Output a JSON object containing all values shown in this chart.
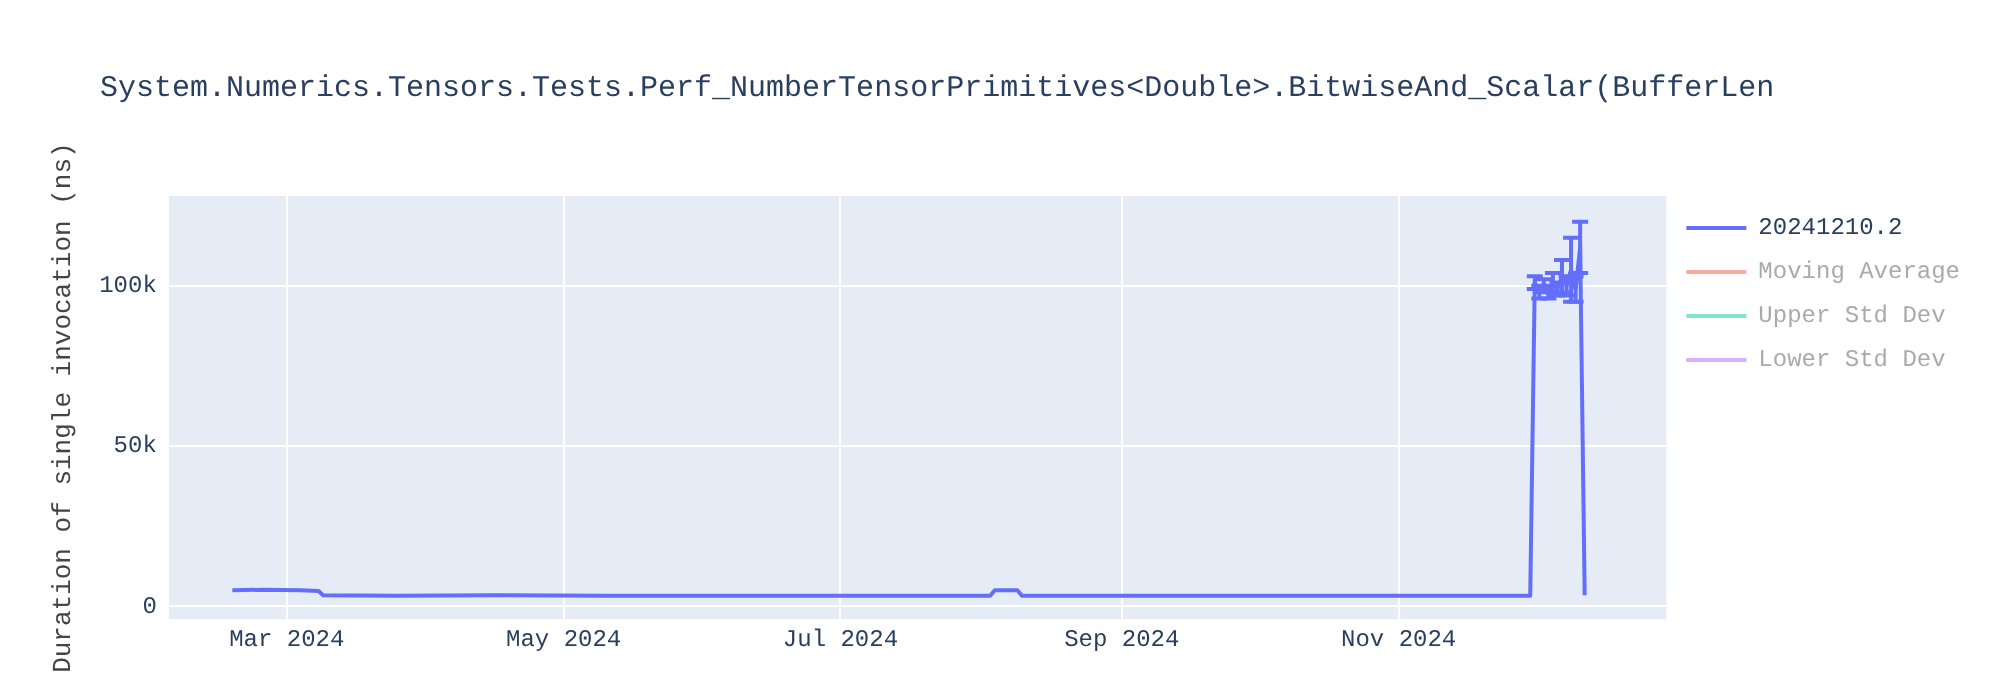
{
  "chart_data": {
    "type": "line",
    "title": "System.Numerics.Tensors.Tests.Perf_NumberTensorPrimitives<Double>.BitwiseAnd_Scalar(BufferLen",
    "ylabel": "Duration of single invocation (ns)",
    "xlim": [
      "2024-02-04",
      "2024-12-30"
    ],
    "xticks": [
      {
        "value": "2024-03-01",
        "label": "Mar 2024"
      },
      {
        "value": "2024-05-01",
        "label": "May 2024"
      },
      {
        "value": "2024-07-01",
        "label": "Jul 2024"
      },
      {
        "value": "2024-09-01",
        "label": "Sep 2024"
      },
      {
        "value": "2024-11-01",
        "label": "Nov 2024"
      }
    ],
    "ylim": [
      -4000,
      128000
    ],
    "yticks": [
      0,
      {
        "value": 50000,
        "label": "50k"
      },
      {
        "value": 100000,
        "label": "100k"
      }
    ],
    "grid": true,
    "legend": "top right",
    "marker": "none",
    "line_style": "solid",
    "series": [
      {
        "name": "20241210.2",
        "color": "#636efa",
        "x": [
          "2024-02-18",
          "2024-02-25",
          "2024-03-04",
          "2024-03-08",
          "2024-03-09",
          "2024-03-25",
          "2024-04-15",
          "2024-05-10",
          "2024-06-15",
          "2024-07-20",
          "2024-08-03",
          "2024-08-04",
          "2024-08-09",
          "2024-08-10",
          "2024-09-20",
          "2024-10-20",
          "2024-11-30",
          "2024-12-01",
          "2024-12-02",
          "2024-12-03",
          "2024-12-04",
          "2024-12-05",
          "2024-12-06",
          "2024-12-07",
          "2024-12-08",
          "2024-12-09",
          "2024-12-10",
          "2024-12-11",
          "2024-12-12"
        ],
        "values": [
          5000,
          5200,
          5000,
          4800,
          3500,
          3300,
          3500,
          3300,
          3300,
          3300,
          3300,
          5000,
          5000,
          3300,
          3300,
          3300,
          3300,
          101000,
          98000,
          100000,
          98000,
          101000,
          99000,
          103000,
          100000,
          105000,
          99000,
          112000,
          3500
        ],
        "errors": [
          null,
          null,
          null,
          null,
          null,
          null,
          null,
          null,
          null,
          null,
          null,
          null,
          null,
          null,
          null,
          null,
          null,
          2000,
          2000,
          2000,
          2000,
          3000,
          2000,
          5000,
          3000,
          10000,
          4000,
          8000,
          null
        ]
      },
      {
        "name": "Moving Average",
        "color": "#f7aa9d",
        "values": [
          null
        ]
      },
      {
        "name": "Upper Std Dev",
        "color": "#80e5ca",
        "values": [
          null
        ]
      },
      {
        "name": "Lower Std Dev",
        "color": "#d5b1fc",
        "values": [
          null
        ]
      }
    ]
  }
}
